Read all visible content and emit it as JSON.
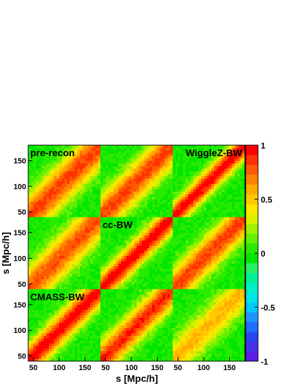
{
  "chart_data": {
    "type": "heatmap",
    "description_of_grid": "3x3 grid of correlation matrices; diagonal panels = auto-correlations, off-diagonal = cross-correlations",
    "xlabel": "s [Mpc/h]",
    "ylabel": "s [Mpc/h]",
    "xlim": [
      40,
      180
    ],
    "ylim": [
      40,
      180
    ],
    "x_ticks": [
      "50",
      "100",
      "150"
    ],
    "y_ticks": [
      "50",
      "100",
      "150"
    ],
    "panel_labels": [
      {
        "row": 0,
        "col": 0,
        "text": "pre-recon"
      },
      {
        "row": 0,
        "col": 2,
        "text": "WiggleZ-BW"
      },
      {
        "row": 1,
        "col": 1,
        "text": "cc-BW"
      },
      {
        "row": 2,
        "col": 0,
        "text": "CMASS-BW"
      }
    ],
    "panel_properties": [
      {
        "row": 0,
        "col": 0,
        "peak": 0.85,
        "width": 30
      },
      {
        "row": 0,
        "col": 1,
        "peak": 0.85,
        "width": 28
      },
      {
        "row": 0,
        "col": 2,
        "peak": 1.0,
        "width": 18
      },
      {
        "row": 1,
        "col": 0,
        "peak": 0.8,
        "width": 30
      },
      {
        "row": 1,
        "col": 1,
        "peak": 1.0,
        "width": 20
      },
      {
        "row": 1,
        "col": 2,
        "peak": 0.85,
        "width": 26
      },
      {
        "row": 2,
        "col": 0,
        "peak": 1.0,
        "width": 22
      },
      {
        "row": 2,
        "col": 1,
        "peak": 0.9,
        "width": 24
      },
      {
        "row": 2,
        "col": 2,
        "peak": 0.55,
        "width": 28
      }
    ],
    "colorbar": {
      "range": [
        -1,
        1
      ],
      "ticks": [
        "1",
        "0.5",
        "0",
        "-0.5",
        "-1"
      ],
      "tick_values": [
        1,
        0.5,
        0,
        -0.5,
        -1
      ]
    },
    "palette": [
      "#5a1ee6",
      "#4632e6",
      "#2846f0",
      "#1e6eff",
      "#1e96ff",
      "#00c8ff",
      "#00e6e6",
      "#00f0c8",
      "#00f096",
      "#28f064",
      "#00e600",
      "#28eb00",
      "#64f000",
      "#a0f000",
      "#dcf000",
      "#ffe600",
      "#ffc800",
      "#ffaa00",
      "#ff8200",
      "#ff5a00",
      "#ff3200",
      "#ff0000"
    ]
  }
}
